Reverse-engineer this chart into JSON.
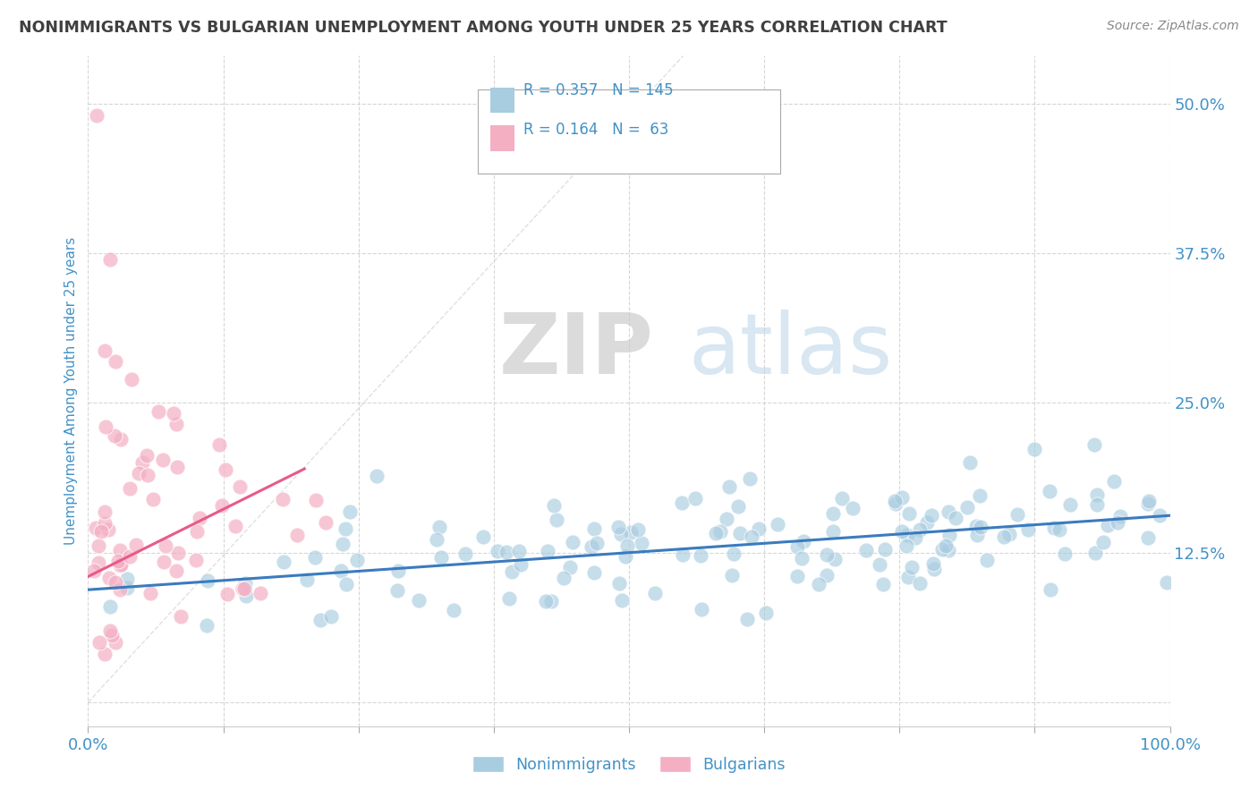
{
  "title": "NONIMMIGRANTS VS BULGARIAN UNEMPLOYMENT AMONG YOUTH UNDER 25 YEARS CORRELATION CHART",
  "source": "Source: ZipAtlas.com",
  "ylabel": "Unemployment Among Youth under 25 years",
  "xlim": [
    0.0,
    1.0
  ],
  "ylim": [
    -0.02,
    0.54
  ],
  "xticks": [
    0.0,
    0.125,
    0.25,
    0.375,
    0.5,
    0.625,
    0.75,
    0.875,
    1.0
  ],
  "xticklabels": [
    "0.0%",
    "",
    "",
    "",
    "",
    "",
    "",
    "",
    "100.0%"
  ],
  "yticks": [
    0.0,
    0.125,
    0.25,
    0.375,
    0.5
  ],
  "yticklabels": [
    "",
    "12.5%",
    "25.0%",
    "37.5%",
    "50.0%"
  ],
  "watermark_zip": "ZIP",
  "watermark_atlas": "atlas",
  "legend_r1": "R = 0.357",
  "legend_n1": "N = 145",
  "legend_r2": "R = 0.164",
  "legend_n2": "N =  63",
  "legend_label1": "Nonimmigrants",
  "legend_label2": "Bulgarians",
  "blue_color": "#a8cce0",
  "pink_color": "#f4afc3",
  "blue_line_color": "#3a7bbf",
  "pink_line_color": "#e85a8a",
  "title_color": "#404040",
  "axis_label_color": "#4292c6",
  "tick_color": "#4292c6",
  "grid_color": "#cccccc",
  "background_color": "#ffffff",
  "blue_trend_x": [
    0.0,
    1.0
  ],
  "blue_trend_y": [
    0.094,
    0.156
  ],
  "pink_trend_x": [
    0.0,
    0.2
  ],
  "pink_trend_y": [
    0.105,
    0.195
  ]
}
